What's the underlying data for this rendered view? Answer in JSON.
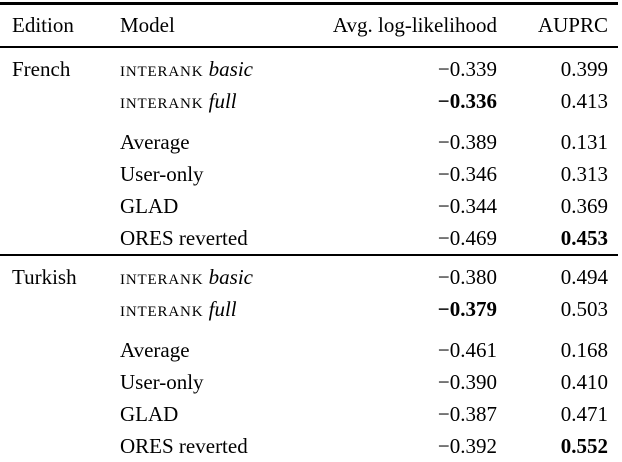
{
  "table": {
    "columns": [
      "Edition",
      "Model",
      "Avg. log-likelihood",
      "AUPRC"
    ],
    "sections": [
      {
        "edition": "French",
        "rows": [
          {
            "model_smallcaps": "interank",
            "model_variant": "basic",
            "avg_ll": "−0.339",
            "avg_ll_bold": false,
            "auprc": "0.399",
            "auprc_bold": false
          },
          {
            "model_smallcaps": "interank",
            "model_variant": "full",
            "avg_ll": "−0.336",
            "avg_ll_bold": true,
            "auprc": "0.413",
            "auprc_bold": false
          },
          {
            "model": "Average",
            "avg_ll": "−0.389",
            "avg_ll_bold": false,
            "auprc": "0.131",
            "auprc_bold": false
          },
          {
            "model": "User-only",
            "avg_ll": "−0.346",
            "avg_ll_bold": false,
            "auprc": "0.313",
            "auprc_bold": false
          },
          {
            "model": "GLAD",
            "avg_ll": "−0.344",
            "avg_ll_bold": false,
            "auprc": "0.369",
            "auprc_bold": false
          },
          {
            "model": "ORES reverted",
            "avg_ll": "−0.469",
            "avg_ll_bold": false,
            "auprc": "0.453",
            "auprc_bold": true
          }
        ]
      },
      {
        "edition": "Turkish",
        "rows": [
          {
            "model_smallcaps": "interank",
            "model_variant": "basic",
            "avg_ll": "−0.380",
            "avg_ll_bold": false,
            "auprc": "0.494",
            "auprc_bold": false
          },
          {
            "model_smallcaps": "interank",
            "model_variant": "full",
            "avg_ll": "−0.379",
            "avg_ll_bold": true,
            "auprc": "0.503",
            "auprc_bold": false
          },
          {
            "model": "Average",
            "avg_ll": "−0.461",
            "avg_ll_bold": false,
            "auprc": "0.168",
            "auprc_bold": false
          },
          {
            "model": "User-only",
            "avg_ll": "−0.390",
            "avg_ll_bold": false,
            "auprc": "0.410",
            "auprc_bold": false
          },
          {
            "model": "GLAD",
            "avg_ll": "−0.387",
            "avg_ll_bold": false,
            "auprc": "0.471",
            "auprc_bold": false
          },
          {
            "model": "ORES reverted",
            "avg_ll": "−0.392",
            "avg_ll_bold": false,
            "auprc": "0.552",
            "auprc_bold": true
          }
        ]
      }
    ],
    "colors": {
      "text": "#000000",
      "background": "#ffffff",
      "rule": "#000000"
    }
  }
}
